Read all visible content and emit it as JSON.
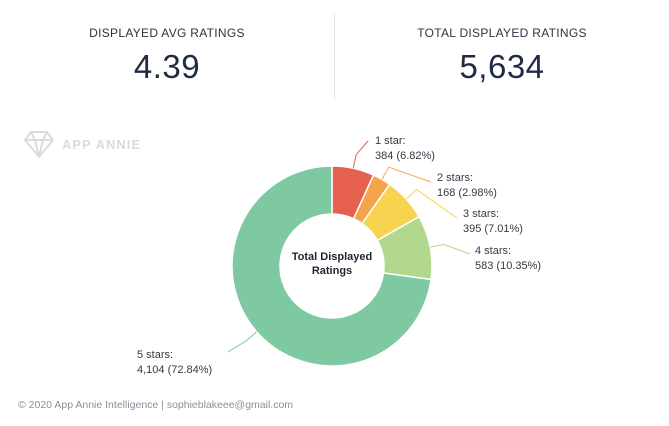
{
  "kpis": {
    "avg": {
      "label": "DISPLAYED AVG RATINGS",
      "value": "4.39"
    },
    "total": {
      "label": "TOTAL DISPLAYED RATINGS",
      "value": "5,634"
    }
  },
  "watermark": {
    "text": "APP ANNIE",
    "icon": "diamond-logo-icon"
  },
  "footer": {
    "text": "© 2020 App Annie Intelligence | sophieblakeee@gmail.com"
  },
  "colors": {
    "1_star": "#e5604e",
    "2_stars": "#f6a44c",
    "3_stars": "#f7d44f",
    "4_stars": "#b2d88e",
    "5_stars": "#7ec8a2"
  },
  "chart_data": {
    "type": "pie",
    "donut": true,
    "center_label": [
      "Total Displayed",
      "Ratings"
    ],
    "slices": [
      {
        "label_name": "1 star:",
        "label_value": "384 (6.82%)",
        "value": 384,
        "percent": 6.82,
        "color": "#e5604e"
      },
      {
        "label_name": "2 stars:",
        "label_value": "168 (2.98%)",
        "value": 168,
        "percent": 2.98,
        "color": "#f6a44c"
      },
      {
        "label_name": "3 stars:",
        "label_value": "395 (7.01%)",
        "value": 395,
        "percent": 7.01,
        "color": "#f7d44f"
      },
      {
        "label_name": "4 stars:",
        "label_value": "583 (10.35%)",
        "value": 583,
        "percent": 10.35,
        "color": "#b2d88e"
      },
      {
        "label_name": "5 stars:",
        "label_value": "4,104 (72.84%)",
        "value": 4104,
        "percent": 72.84,
        "color": "#7ec8a2"
      }
    ]
  }
}
